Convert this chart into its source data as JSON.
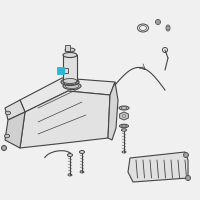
{
  "background_color": "#f0f0f0",
  "line_color": "#444444",
  "highlight_color": "#2ab8d8",
  "figsize": [
    2.0,
    2.0
  ],
  "dpi": 100
}
